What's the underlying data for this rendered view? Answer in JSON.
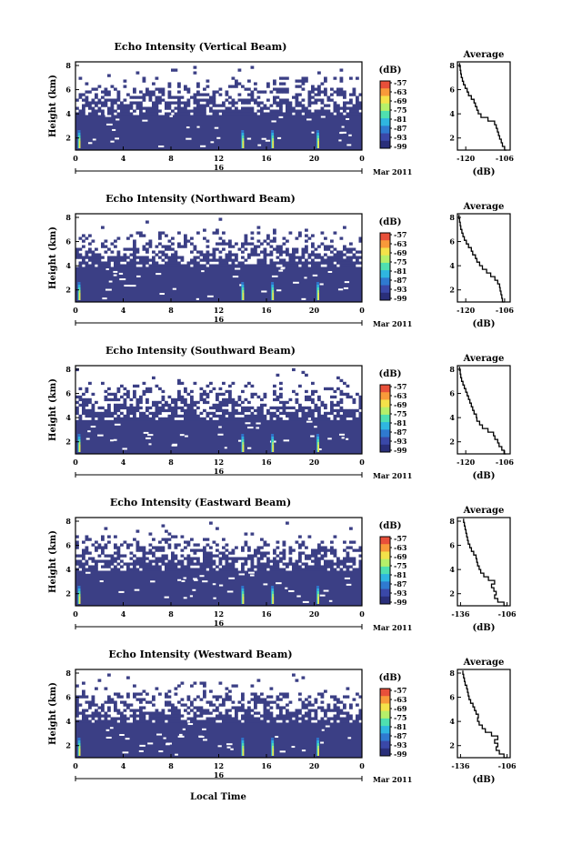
{
  "figure": {
    "x_axis_title": "Local Time",
    "date_label": "Mar 2011",
    "day_label": "16",
    "colorbar_unit": "(dB)",
    "colorbar_ticks": [
      "-57",
      "-63",
      "-69",
      "-75",
      "-81",
      "-87",
      "-93",
      "-99"
    ],
    "colors": {
      "background_fill": "#3b3f85",
      "frame": "#000000",
      "colormap": [
        "#2a2f7a",
        "#3a48a8",
        "#2f7ad0",
        "#2fb6e0",
        "#4fe0b0",
        "#b6f06a",
        "#f4e24a",
        "#f89a3a",
        "#e8503a"
      ]
    }
  },
  "chart_data": [
    {
      "type": "heatmap",
      "title": "Echo Intensity (Vertical Beam)",
      "ylabel": "Height (km)",
      "x_ticks": [
        "0",
        "4",
        "8",
        "12",
        "16",
        "20",
        "0"
      ],
      "y_ticks": [
        "2",
        "4",
        "6",
        "8"
      ],
      "xlim": [
        0,
        24
      ],
      "ylim": [
        1,
        8.3
      ],
      "clim": [
        -99,
        -57
      ],
      "echo_top_km": 3.9,
      "enhanced_echo_times": [
        0.3,
        14,
        16.5,
        20.3
      ],
      "profile": {
        "title": "Average",
        "xlabel": "(dB)",
        "x_ticks": [
          "-120",
          "-106"
        ],
        "y_ticks": [
          "2",
          "4",
          "6",
          "8"
        ],
        "xlim": [
          -123,
          -104
        ],
        "ylim": [
          1,
          8.3
        ],
        "height": [
          1.0,
          1.3,
          1.6,
          1.9,
          2.2,
          2.5,
          2.8,
          3.1,
          3.4,
          3.7,
          4.0,
          4.3,
          4.6,
          4.9,
          5.2,
          5.5,
          5.8,
          6.1,
          6.4,
          6.7,
          7.0,
          7.3,
          7.6,
          7.9,
          8.2
        ],
        "value": [
          -105.3,
          -106.0,
          -106.8,
          -107.2,
          -107.8,
          -108.2,
          -108.6,
          -109.0,
          -109.6,
          -112.0,
          -114.5,
          -115.5,
          -116.0,
          -116.5,
          -117.0,
          -118.0,
          -119.0,
          -119.5,
          -120.2,
          -120.8,
          -121.2,
          -121.6,
          -121.8,
          -122.0,
          -122.2
        ]
      }
    },
    {
      "type": "heatmap",
      "title": "Echo Intensity (Northward Beam)",
      "ylabel": "Height (km)",
      "x_ticks": [
        "0",
        "4",
        "8",
        "12",
        "16",
        "20",
        "0"
      ],
      "y_ticks": [
        "2",
        "4",
        "6",
        "8"
      ],
      "xlim": [
        0,
        24
      ],
      "ylim": [
        1,
        8.3
      ],
      "clim": [
        -99,
        -57
      ],
      "echo_top_km": 3.9,
      "enhanced_echo_times": [
        0.3,
        14,
        16.5,
        20.3
      ],
      "profile": {
        "title": "Average",
        "xlabel": "(dB)",
        "x_ticks": [
          "-120",
          "-106"
        ],
        "y_ticks": [
          "2",
          "4",
          "6",
          "8"
        ],
        "xlim": [
          -123,
          -104
        ],
        "ylim": [
          1,
          8.3
        ],
        "height": [
          1.0,
          1.3,
          1.6,
          1.9,
          2.2,
          2.5,
          2.8,
          3.1,
          3.4,
          3.7,
          4.0,
          4.3,
          4.6,
          4.9,
          5.2,
          5.5,
          5.8,
          6.1,
          6.4,
          6.7,
          7.0,
          7.3,
          7.6,
          7.9,
          8.2
        ],
        "value": [
          -106.0,
          -106.8,
          -107.0,
          -107.3,
          -107.6,
          -107.8,
          -108.5,
          -109.5,
          -111.0,
          -112.5,
          -114.0,
          -115.0,
          -116.0,
          -116.5,
          -117.5,
          -118.0,
          -119.0,
          -119.8,
          -120.5,
          -121.0,
          -121.4,
          -121.8,
          -122.0,
          -122.2,
          -122.4
        ]
      }
    },
    {
      "type": "heatmap",
      "title": "Echo Intensity (Southward Beam)",
      "ylabel": "Height (km)",
      "x_ticks": [
        "0",
        "4",
        "8",
        "12",
        "16",
        "20",
        "0"
      ],
      "y_ticks": [
        "2",
        "4",
        "6",
        "8"
      ],
      "xlim": [
        0,
        24
      ],
      "ylim": [
        1,
        8.3
      ],
      "clim": [
        -99,
        -57
      ],
      "echo_top_km": 3.8,
      "enhanced_echo_times": [
        0.3,
        14,
        16.5,
        20.3
      ],
      "profile": {
        "title": "Average",
        "xlabel": "(dB)",
        "x_ticks": [
          "-120",
          "-106"
        ],
        "y_ticks": [
          "2",
          "4",
          "6",
          "8"
        ],
        "xlim": [
          -123,
          -104
        ],
        "ylim": [
          1,
          8.3
        ],
        "height": [
          1.0,
          1.3,
          1.6,
          1.9,
          2.2,
          2.5,
          2.8,
          3.1,
          3.4,
          3.7,
          4.0,
          4.3,
          4.6,
          4.9,
          5.2,
          5.5,
          5.8,
          6.1,
          6.4,
          6.7,
          7.0,
          7.3,
          7.6,
          7.9,
          8.2
        ],
        "value": [
          -105.5,
          -106.2,
          -107.0,
          -108.0,
          -108.5,
          -109.5,
          -110.0,
          -112.0,
          -114.0,
          -115.0,
          -116.0,
          -116.2,
          -117.0,
          -117.5,
          -118.0,
          -118.5,
          -119.0,
          -119.5,
          -120.0,
          -120.5,
          -121.0,
          -121.5,
          -121.8,
          -122.0,
          -122.2
        ]
      }
    },
    {
      "type": "heatmap",
      "title": "Echo Intensity (Eastward Beam)",
      "ylabel": "Height (km)",
      "x_ticks": [
        "0",
        "4",
        "8",
        "12",
        "16",
        "20",
        "0"
      ],
      "y_ticks": [
        "2",
        "4",
        "6",
        "8"
      ],
      "xlim": [
        0,
        24
      ],
      "ylim": [
        1,
        8.3
      ],
      "clim": [
        -99,
        -57
      ],
      "echo_top_km": 3.9,
      "enhanced_echo_times": [
        0.3,
        14,
        16.5,
        20.3
      ],
      "profile": {
        "title": "Average",
        "xlabel": "(dB)",
        "x_ticks": [
          "-136",
          "-106"
        ],
        "y_ticks": [
          "2",
          "4",
          "6",
          "8"
        ],
        "xlim": [
          -138,
          -104
        ],
        "ylim": [
          1,
          8.3
        ],
        "height": [
          1.0,
          1.3,
          1.6,
          1.9,
          2.2,
          2.5,
          2.8,
          3.1,
          3.4,
          3.7,
          4.0,
          4.3,
          4.6,
          4.9,
          5.2,
          5.5,
          5.8,
          6.1,
          6.4,
          6.7,
          7.0,
          7.3,
          7.6,
          7.9,
          8.2
        ],
        "value": [
          -106.0,
          -108.0,
          -112.0,
          -114.0,
          -113.0,
          -114.5,
          -116.0,
          -114.0,
          -118.0,
          -121.0,
          -123.0,
          -124.0,
          -125.0,
          -125.5,
          -126.0,
          -127.5,
          -129.0,
          -130.0,
          -131.0,
          -131.5,
          -132.0,
          -132.5,
          -133.0,
          -133.5,
          -134.0
        ]
      }
    },
    {
      "type": "heatmap",
      "title": "Echo Intensity (Westward Beam)",
      "ylabel": "Height (km)",
      "x_ticks": [
        "0",
        "4",
        "8",
        "12",
        "16",
        "20",
        "0"
      ],
      "y_ticks": [
        "2",
        "4",
        "6",
        "8"
      ],
      "xlim": [
        0,
        24
      ],
      "ylim": [
        1,
        8.3
      ],
      "clim": [
        -99,
        -57
      ],
      "echo_top_km": 3.9,
      "enhanced_echo_times": [
        0.3,
        14,
        16.5,
        20.3
      ],
      "profile": {
        "title": "Average",
        "xlabel": "(dB)",
        "x_ticks": [
          "-136",
          "-106"
        ],
        "y_ticks": [
          "2",
          "4",
          "6",
          "8"
        ],
        "xlim": [
          -138,
          -104
        ],
        "ylim": [
          1,
          8.3
        ],
        "height": [
          1.0,
          1.3,
          1.6,
          1.9,
          2.2,
          2.5,
          2.8,
          3.1,
          3.4,
          3.7,
          4.0,
          4.3,
          4.6,
          4.9,
          5.2,
          5.5,
          5.8,
          6.1,
          6.4,
          6.7,
          7.0,
          7.3,
          7.6,
          7.9,
          8.2
        ],
        "value": [
          -106.0,
          -108.0,
          -111.0,
          -113.0,
          -112.0,
          -114.0,
          -112.0,
          -116.0,
          -120.0,
          -122.0,
          -124.0,
          -125.0,
          -124.5,
          -126.0,
          -127.0,
          -128.0,
          -129.5,
          -130.5,
          -131.0,
          -131.5,
          -132.0,
          -133.0,
          -133.5,
          -134.0,
          -134.5
        ]
      }
    }
  ]
}
